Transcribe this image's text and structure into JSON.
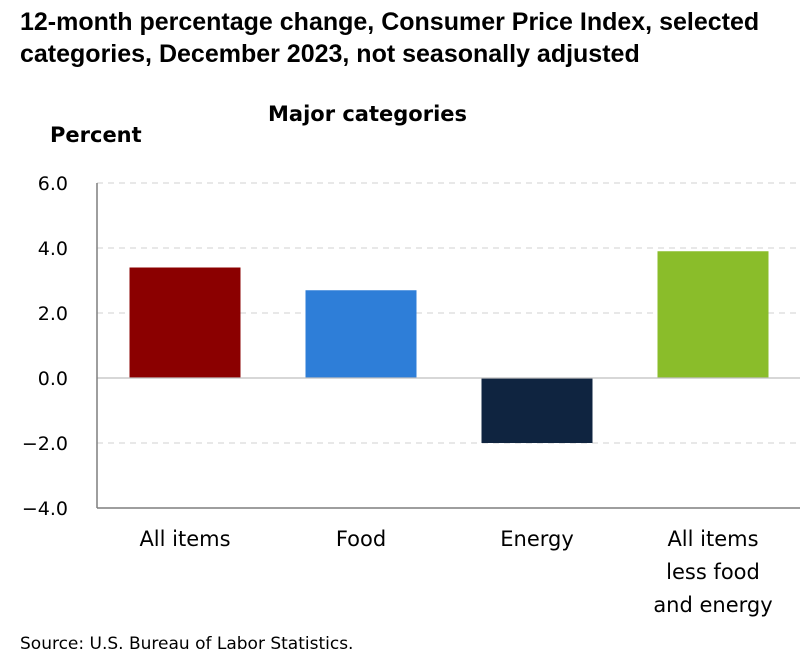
{
  "chart_data": {
    "type": "bar",
    "title": "12-month percentage change, Consumer Price Index, selected categories, December 2023, not seasonally adjusted",
    "subtitle": "Major categories",
    "ylabel": "Percent",
    "source": "Source: U.S. Bureau of Labor Statistics.",
    "categories": [
      [
        "All items"
      ],
      [
        "Food"
      ],
      [
        "Energy"
      ],
      [
        "All items",
        "less food",
        "and energy"
      ]
    ],
    "values": [
      3.4,
      2.7,
      -2.0,
      3.9
    ],
    "colors": [
      "#8B0000",
      "#2E7ED8",
      "#0F2440",
      "#8ABD2A"
    ],
    "ylim": [
      -4.0,
      6.0
    ],
    "yticks": [
      -4.0,
      -2.0,
      0.0,
      2.0,
      4.0,
      6.0
    ],
    "ytick_labels": [
      "−4.0",
      "−2.0",
      "0.0",
      "2.0",
      "4.0",
      "6.0"
    ],
    "grid": true
  }
}
